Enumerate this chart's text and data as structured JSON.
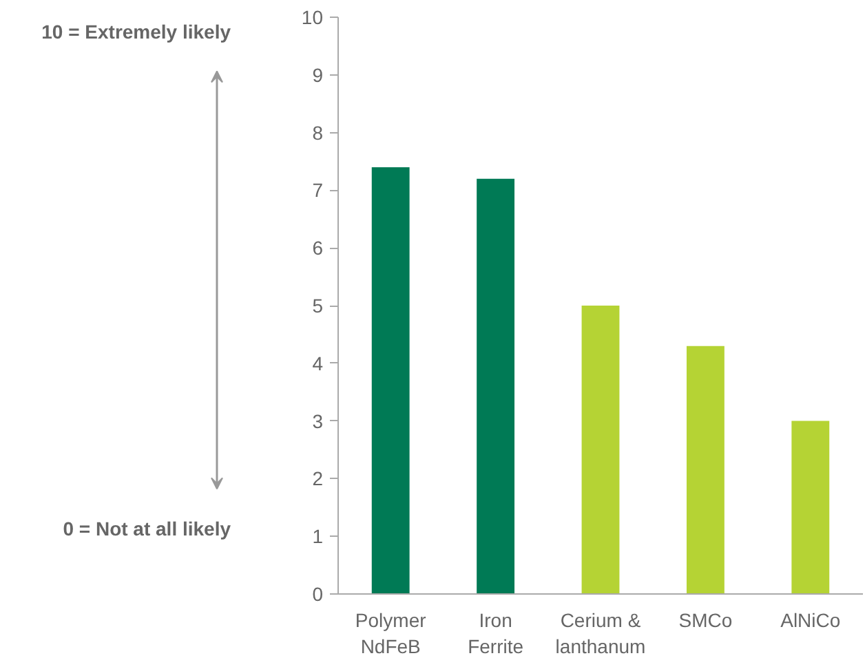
{
  "chart_data": {
    "type": "bar",
    "categories": [
      "Polymer NdFeB",
      "Iron Ferrite",
      "Cerium & lanthanum",
      "SMCo",
      "AlNiCo"
    ],
    "values": [
      7.4,
      7.2,
      5.0,
      4.3,
      3.0
    ],
    "colors": [
      "#007a55",
      "#007a55",
      "#b5d334",
      "#b5d334",
      "#b5d334"
    ],
    "ylim": [
      0,
      10
    ],
    "yticks": [
      0,
      1,
      2,
      3,
      4,
      5,
      6,
      7,
      8,
      9,
      10
    ],
    "grid": false,
    "annotations": [
      "10 = Extremely likely",
      "0 = Not at all likely"
    ]
  }
}
